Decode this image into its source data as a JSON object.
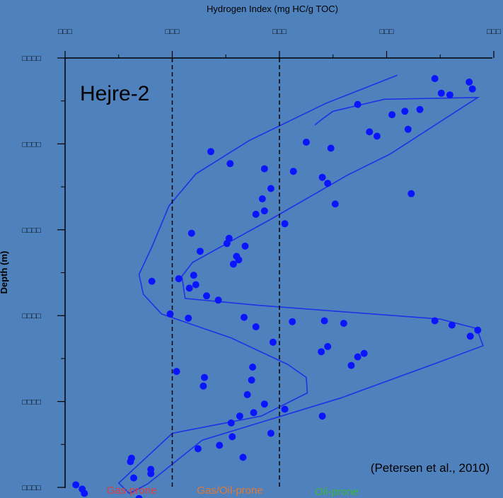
{
  "chart_data": {
    "type": "scatter",
    "title": "Hejre-2",
    "xlabel": "Hydrogen Index (mg HC/g TOC)",
    "ylabel": "Depth (m)",
    "x_axis_position": "top",
    "y_inverted": true,
    "xlim": [
      0,
      400
    ],
    "ylim": [
      0,
      5
    ],
    "x_ticks": [
      0,
      100,
      200,
      300,
      400
    ],
    "x_tick_labels": [
      "□□□",
      "□□□",
      "□□□",
      "□□□",
      "□□□"
    ],
    "y_ticks": [
      0,
      1,
      2,
      3,
      4,
      5
    ],
    "y_tick_labels": [
      "□□□□",
      "□□□□",
      "□□□□",
      "□□□□",
      "□□□□",
      "□□□□"
    ],
    "grid": false,
    "dashed_vertical_lines_x": [
      100,
      200
    ],
    "zone_labels": [
      {
        "text": "Gas-prone",
        "color": "#e03c3c",
        "x": 50
      },
      {
        "text": "Gas/Oil-prone",
        "color": "#e07a32",
        "x": 150
      },
      {
        "text": "Oil-prone",
        "color": "#3cb43c",
        "x": 250
      }
    ],
    "annotation": "(Petersen et al., 2010)",
    "series": [
      {
        "marker_color": "#0a14ff",
        "points": [
          [
            345,
            0.24
          ],
          [
            377,
            0.28
          ],
          [
            380,
            0.36
          ],
          [
            351,
            0.41
          ],
          [
            359,
            0.43
          ],
          [
            273,
            0.54
          ],
          [
            331,
            0.6
          ],
          [
            317,
            0.62
          ],
          [
            305,
            0.66
          ],
          [
            320,
            0.83
          ],
          [
            284,
            0.86
          ],
          [
            291,
            0.91
          ],
          [
            225,
            0.98
          ],
          [
            248,
            1.05
          ],
          [
            136,
            1.09
          ],
          [
            154,
            1.23
          ],
          [
            186,
            1.29
          ],
          [
            213,
            1.32
          ],
          [
            245,
            1.46
          ],
          [
            240,
            1.39
          ],
          [
            323,
            1.58
          ],
          [
            192,
            1.52
          ],
          [
            184,
            1.64
          ],
          [
            186,
            1.78
          ],
          [
            252,
            1.7
          ],
          [
            178,
            1.82
          ],
          [
            205,
            1.93
          ],
          [
            118,
            2.04
          ],
          [
            153,
            2.1
          ],
          [
            151,
            2.16
          ],
          [
            168,
            2.19
          ],
          [
            126,
            2.25
          ],
          [
            160,
            2.31
          ],
          [
            162,
            2.35
          ],
          [
            157,
            2.4
          ],
          [
            120,
            2.53
          ],
          [
            106,
            2.57
          ],
          [
            122,
            2.64
          ],
          [
            81,
            2.6
          ],
          [
            116,
            2.68
          ],
          [
            132,
            2.77
          ],
          [
            143,
            2.82
          ],
          [
            98,
            2.98
          ],
          [
            115,
            3.03
          ],
          [
            167,
            3.02
          ],
          [
            242,
            3.06
          ],
          [
            212,
            3.07
          ],
          [
            178,
            3.13
          ],
          [
            260,
            3.09
          ],
          [
            345,
            3.06
          ],
          [
            385,
            3.17
          ],
          [
            378,
            3.24
          ],
          [
            361,
            3.11
          ],
          [
            194,
            3.31
          ],
          [
            245,
            3.36
          ],
          [
            239,
            3.42
          ],
          [
            279,
            3.44
          ],
          [
            273,
            3.48
          ],
          [
            267,
            3.58
          ],
          [
            175,
            3.6
          ],
          [
            104,
            3.65
          ],
          [
            130,
            3.72
          ],
          [
            174,
            3.75
          ],
          [
            129,
            3.82
          ],
          [
            170,
            3.92
          ],
          [
            186,
            4.03
          ],
          [
            205,
            4.09
          ],
          [
            176,
            4.13
          ],
          [
            163,
            4.17
          ],
          [
            240,
            4.17
          ],
          [
            155,
            4.25
          ],
          [
            192,
            4.37
          ],
          [
            156,
            4.41
          ],
          [
            144,
            4.51
          ],
          [
            124,
            4.55
          ],
          [
            166,
            4.65
          ],
          [
            62,
            4.66
          ],
          [
            61,
            4.7
          ],
          [
            80,
            4.79
          ],
          [
            80,
            4.84
          ],
          [
            64,
            4.89
          ],
          [
            10,
            4.97
          ],
          [
            16,
            5.02
          ],
          [
            18,
            5.07
          ],
          [
            69,
            5.13
          ]
        ]
      }
    ],
    "envelope": {
      "line_color": "#1e32e6",
      "points": [
        [
          310,
          0.2
        ],
        [
          243,
          0.53
        ],
        [
          172,
          0.96
        ],
        [
          122,
          1.35
        ],
        [
          97,
          1.72
        ],
        [
          81,
          2.2
        ],
        [
          69,
          2.52
        ],
        [
          73,
          2.75
        ],
        [
          90,
          2.98
        ],
        [
          155,
          3.26
        ],
        [
          208,
          3.57
        ],
        [
          225,
          3.72
        ],
        [
          226,
          3.9
        ],
        [
          183,
          4.17
        ],
        [
          100,
          4.37
        ],
        [
          50,
          4.95
        ],
        [
          60,
          5.07
        ],
        [
          77,
          4.96
        ],
        [
          128,
          4.45
        ],
        [
          257,
          3.96
        ],
        [
          347,
          3.55
        ],
        [
          390,
          3.35
        ],
        [
          384,
          3.15
        ],
        [
          350,
          3.04
        ],
        [
          180,
          2.88
        ],
        [
          112,
          2.8
        ],
        [
          109,
          2.54
        ],
        [
          119,
          2.38
        ],
        [
          193,
          1.87
        ],
        [
          264,
          1.36
        ],
        [
          303,
          1.12
        ],
        [
          385,
          0.46
        ],
        [
          298,
          0.48
        ],
        [
          250,
          0.62
        ],
        [
          240,
          0.71
        ],
        [
          233,
          0.78
        ]
      ]
    }
  }
}
